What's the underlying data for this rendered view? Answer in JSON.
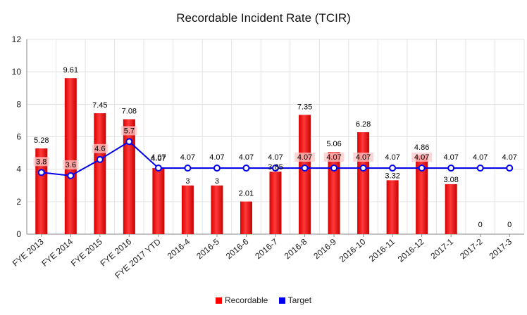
{
  "chart_data": {
    "type": "bar",
    "title": "Recordable Incident Rate (TCIR)",
    "xlabel": "",
    "ylabel": "",
    "ylim": [
      0,
      12
    ],
    "yticks": [
      0,
      2,
      4,
      6,
      8,
      10,
      12
    ],
    "grid": true,
    "legend_position": "bottom",
    "categories": [
      "FYE 2013",
      "FYE 2014",
      "FYE 2015",
      "FYE 2016",
      "FYE 2017 YTD",
      "2016-4",
      "2016-5",
      "2016-6",
      "2016-7",
      "2016-8",
      "2016-9",
      "2016-10",
      "2016-11",
      "2016-12",
      "2017-1",
      "2017-2",
      "2017-3"
    ],
    "series": [
      {
        "name": "Recordable",
        "type": "bar",
        "color": "#ff0000",
        "values": [
          5.28,
          9.61,
          7.45,
          7.08,
          4.07,
          3,
          3,
          2.01,
          3.85,
          7.35,
          5.06,
          6.28,
          3.32,
          4.86,
          3.08,
          0,
          0
        ],
        "labels": [
          "5.28",
          "9.61",
          "7.45",
          "7.08",
          "4.07",
          "3",
          "3",
          "2.01",
          "3.85",
          "7.35",
          "5.06",
          "6.28",
          "3.32",
          "4.86",
          "3.08",
          "0",
          "0"
        ]
      },
      {
        "name": "Target",
        "type": "line",
        "color": "#0000ee",
        "values": [
          3.8,
          3.6,
          4.6,
          5.7,
          4.07,
          4.07,
          4.07,
          4.07,
          4.07,
          4.07,
          4.07,
          4.07,
          4.07,
          4.07,
          4.07,
          4.07,
          4.07
        ],
        "labels": [
          "3.8",
          "3.6",
          "4.6",
          "5.7",
          "4.07",
          "4.07",
          "4.07",
          "4.07",
          "4.07",
          "4.07",
          "4.07",
          "4.07",
          "4.07",
          "4.07",
          "4.07",
          "4.07",
          "4.07"
        ]
      }
    ]
  }
}
